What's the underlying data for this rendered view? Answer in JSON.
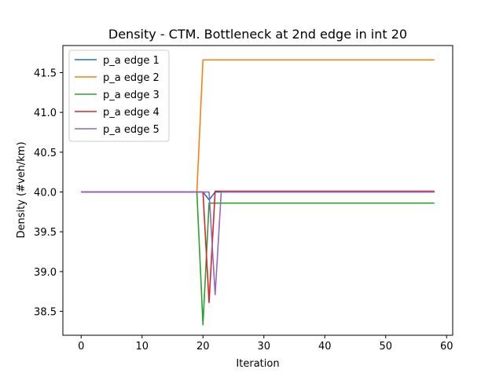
{
  "chart_data": {
    "type": "line",
    "title": "Density - CTM. Bottleneck at 2nd edge in int 20",
    "xlabel": "Iteration",
    "ylabel": "Density (#veh/km)",
    "xlim": [
      -3,
      61
    ],
    "ylim": [
      38.2,
      41.84
    ],
    "xticks": [
      0,
      10,
      20,
      30,
      40,
      50,
      60
    ],
    "xtick_labels": [
      "0",
      "10",
      "20",
      "30",
      "40",
      "50",
      "60"
    ],
    "yticks": [
      38.5,
      39.0,
      39.5,
      40.0,
      40.5,
      41.0,
      41.5
    ],
    "ytick_labels": [
      "38.5",
      "39.0",
      "39.5",
      "40.0",
      "40.5",
      "41.0",
      "41.5"
    ],
    "grid": false,
    "legend_position": "top-left",
    "series": [
      {
        "name": "p_a edge 1",
        "color": "#1f77b4",
        "points": [
          [
            0,
            40.0
          ],
          [
            20,
            40.0
          ],
          [
            21,
            39.9
          ],
          [
            22,
            40.0
          ],
          [
            58,
            40.0
          ]
        ]
      },
      {
        "name": "p_a edge 2",
        "color": "#ff7f0e",
        "points": [
          [
            0,
            40.0
          ],
          [
            19,
            40.0
          ],
          [
            20,
            41.66
          ],
          [
            58,
            41.66
          ]
        ]
      },
      {
        "name": "p_a edge 3",
        "color": "#2ca02c",
        "points": [
          [
            0,
            40.0
          ],
          [
            19,
            40.0
          ],
          [
            20,
            38.33
          ],
          [
            21,
            39.86
          ],
          [
            58,
            39.86
          ]
        ]
      },
      {
        "name": "p_a edge 4",
        "color": "#d62728",
        "points": [
          [
            0,
            40.0
          ],
          [
            20,
            40.0
          ],
          [
            21,
            38.61
          ],
          [
            22,
            40.01
          ],
          [
            58,
            40.01
          ]
        ]
      },
      {
        "name": "p_a edge 5",
        "color": "#9467bd",
        "points": [
          [
            0,
            40.0
          ],
          [
            21,
            40.0
          ],
          [
            22,
            38.71
          ],
          [
            23,
            40.0
          ],
          [
            58,
            40.0
          ]
        ]
      }
    ]
  }
}
